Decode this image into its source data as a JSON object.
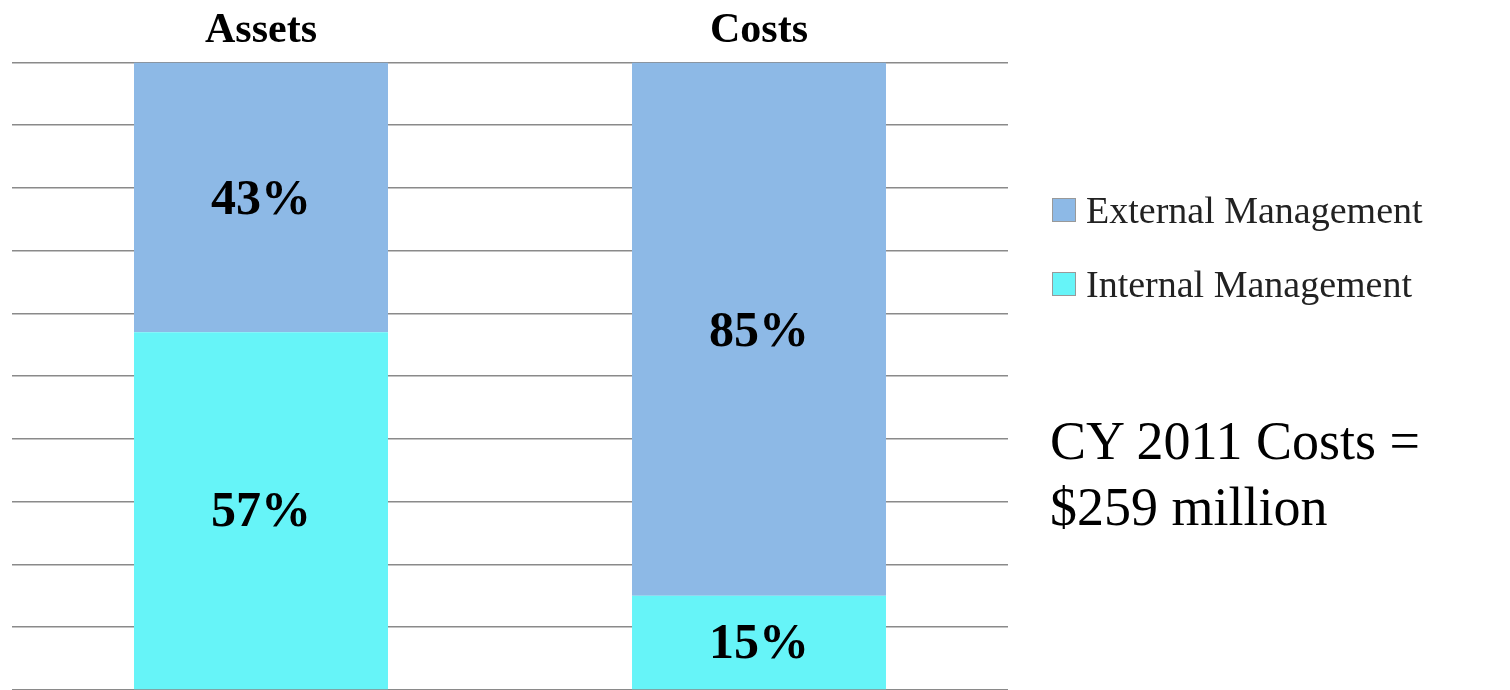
{
  "chart_data": {
    "type": "bar",
    "stacked": true,
    "categories": [
      "Assets",
      "Costs"
    ],
    "series": [
      {
        "name": "Internal Management",
        "color": "#66f4f8",
        "values": [
          57,
          15
        ],
        "value_labels": [
          "57%",
          "15%"
        ]
      },
      {
        "name": "External Management",
        "color": "#8db9e6",
        "values": [
          43,
          85
        ],
        "value_labels": [
          "43%",
          "85%"
        ]
      }
    ],
    "ylim": [
      0,
      100
    ],
    "yticks": [
      {
        "value": 0,
        "label": null
      },
      {
        "value": 10,
        "label": null
      },
      {
        "value": 20,
        "label": null
      },
      {
        "value": 30,
        "label": null
      },
      {
        "value": 40,
        "label": null
      },
      {
        "value": 50,
        "label": null
      },
      {
        "value": 60,
        "label": null
      },
      {
        "value": 70,
        "label": null
      },
      {
        "value": 80,
        "label": null
      },
      {
        "value": 90,
        "label": null
      },
      {
        "value": 100,
        "label": null
      }
    ],
    "tick_labels": "x",
    "grid": "y",
    "legend": "right",
    "annotations": [
      "CY 2011 Costs = $259 million"
    ]
  }
}
